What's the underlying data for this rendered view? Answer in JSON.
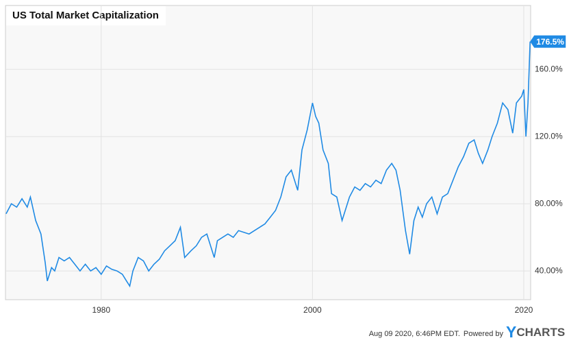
{
  "chart_data": {
    "type": "line",
    "title": "US Total Market Capitalization",
    "x": [
      1971.0,
      1971.5,
      1972.0,
      1972.5,
      1973.0,
      1973.3,
      1973.8,
      1974.3,
      1974.7,
      1974.9,
      1975.3,
      1975.6,
      1976.0,
      1976.5,
      1977.0,
      1977.5,
      1978.0,
      1978.5,
      1979.0,
      1979.5,
      1980.0,
      1980.5,
      1981.0,
      1981.5,
      1982.0,
      1982.4,
      1982.7,
      1983.0,
      1983.5,
      1984.0,
      1984.5,
      1985.0,
      1985.5,
      1986.0,
      1986.5,
      1987.0,
      1987.5,
      1987.9,
      1988.5,
      1989.0,
      1989.5,
      1990.0,
      1990.7,
      1991.0,
      1991.5,
      1992.0,
      1992.5,
      1993.0,
      1994.0,
      1994.5,
      1995.0,
      1995.5,
      1996.0,
      1996.5,
      1997.0,
      1997.5,
      1998.0,
      1998.6,
      1999.0,
      1999.5,
      2000.0,
      2000.3,
      2000.6,
      2001.0,
      2001.5,
      2001.8,
      2002.3,
      2002.8,
      2003.0,
      2003.5,
      2004.0,
      2004.5,
      2005.0,
      2005.5,
      2006.0,
      2006.5,
      2007.0,
      2007.5,
      2007.9,
      2008.3,
      2008.8,
      2009.2,
      2009.6,
      2010.0,
      2010.4,
      2010.8,
      2011.3,
      2011.8,
      2012.3,
      2012.8,
      2013.3,
      2013.8,
      2014.3,
      2014.8,
      2015.3,
      2015.7,
      2016.1,
      2016.6,
      2017.0,
      2017.5,
      2018.0,
      2018.5,
      2018.95,
      2019.3,
      2019.8,
      2020.0,
      2020.2,
      2020.4,
      2020.6
    ],
    "series": [
      {
        "name": "US Total Market Capitalization",
        "color": "#1f8ae4",
        "values": [
          74,
          80,
          78,
          83,
          78,
          84,
          70,
          62,
          45,
          34,
          42,
          40,
          48,
          46,
          48,
          44,
          40,
          44,
          40,
          42,
          38,
          43,
          41,
          40,
          38,
          34,
          31,
          40,
          48,
          46,
          40,
          44,
          47,
          52,
          55,
          58,
          66,
          48,
          52,
          55,
          60,
          62,
          48,
          58,
          60,
          62,
          60,
          64,
          62,
          64,
          66,
          68,
          72,
          76,
          84,
          96,
          100,
          88,
          112,
          124,
          140,
          132,
          128,
          112,
          104,
          86,
          84,
          70,
          74,
          84,
          90,
          88,
          92,
          90,
          94,
          92,
          100,
          104,
          100,
          88,
          64,
          50,
          70,
          78,
          72,
          80,
          84,
          74,
          84,
          86,
          94,
          102,
          108,
          116,
          118,
          110,
          104,
          112,
          120,
          128,
          140,
          136,
          122,
          140,
          144,
          148,
          120,
          140,
          176.5
        ],
        "value_labels": [
          null,
          null,
          null,
          null,
          null,
          null,
          null,
          null,
          null,
          null,
          null,
          null,
          null,
          null,
          null,
          null,
          null,
          null,
          null,
          null,
          null,
          null,
          null,
          null,
          null,
          null,
          null,
          null,
          null,
          null,
          null,
          null,
          null,
          null,
          null,
          null,
          null,
          null,
          null,
          null,
          null,
          null,
          null,
          null,
          null,
          null,
          null,
          null,
          null,
          null,
          null,
          null,
          null,
          null,
          null,
          null,
          null,
          null,
          null,
          null,
          null,
          null,
          null,
          null,
          null,
          null,
          null,
          null,
          null,
          null,
          null,
          null,
          null,
          null,
          null,
          null,
          null,
          null,
          null,
          null,
          null,
          null,
          null,
          null,
          null,
          null,
          null,
          null,
          null,
          null,
          null,
          null,
          null,
          null,
          null,
          null,
          null,
          null,
          null,
          null,
          null,
          null,
          null,
          null,
          null,
          null,
          null,
          null,
          "176.5%"
        ]
      }
    ],
    "xlim": [
      1970.94,
      2020.65
    ],
    "xticks": [
      1980,
      2000,
      2020
    ],
    "ylim": [
      22.9,
      198
    ],
    "yticks": [
      {
        "value": 40,
        "label": "40.00%"
      },
      {
        "value": 80,
        "label": "80.00%"
      },
      {
        "value": 120,
        "label": "120.0%"
      },
      {
        "value": 160,
        "label": "160.0%"
      }
    ],
    "grid": true,
    "footer": {
      "timestamp": "Aug 09 2020, 6:46PM EDT.",
      "powered_by": "Powered by",
      "brand": "YCHARTS"
    }
  }
}
